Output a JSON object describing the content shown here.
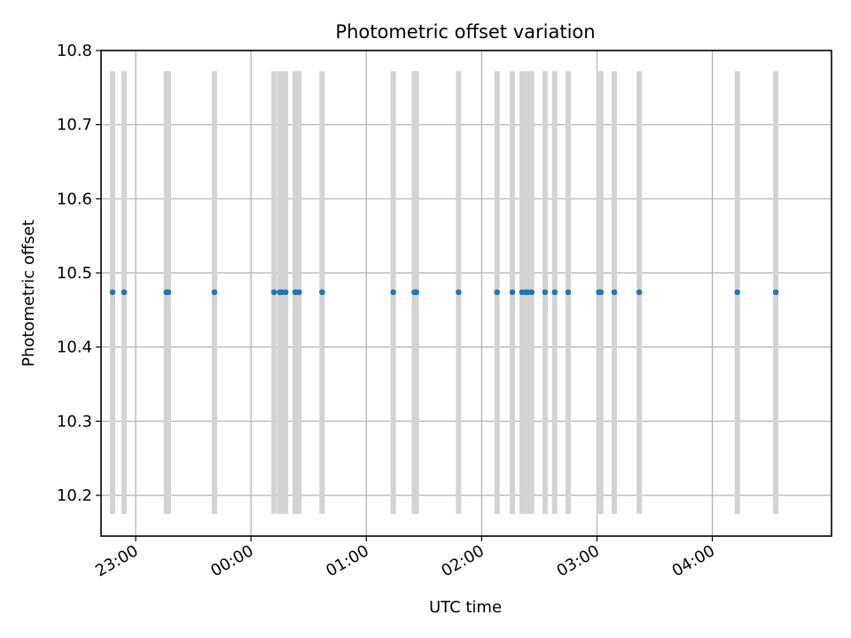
{
  "chart_data": {
    "type": "scatter",
    "title": "Photometric offset variation",
    "xlabel": "UTC time",
    "ylabel": "Photometric offset",
    "x_axis": {
      "type": "time",
      "range": [
        "22:42",
        "05:02"
      ],
      "ticks": [
        {
          "time": "23:00",
          "label": "23:00"
        },
        {
          "time": "00:00",
          "label": "00:00"
        },
        {
          "time": "01:00",
          "label": "01:00"
        },
        {
          "time": "02:00",
          "label": "02:00"
        },
        {
          "time": "03:00",
          "label": "03:00"
        },
        {
          "time": "04:00",
          "label": "04:00"
        }
      ]
    },
    "y_axis": {
      "range": [
        10.145,
        10.8
      ],
      "ticks": [
        10.2,
        10.3,
        10.4,
        10.5,
        10.6,
        10.7,
        10.8
      ],
      "tick_labels": [
        "10.2",
        "10.3",
        "10.4",
        "10.5",
        "10.6",
        "10.7",
        "10.8"
      ]
    },
    "grid": true,
    "colors": {
      "points": "#1f77b4",
      "error_bars": "#d3d3d3",
      "grid": "#b0b0b0"
    },
    "error_bar": {
      "low": 10.175,
      "high": 10.772
    },
    "points": [
      {
        "x": "22:48",
        "y": 10.474
      },
      {
        "x": "22:54",
        "y": 10.474
      },
      {
        "x": "23:16",
        "y": 10.474
      },
      {
        "x": "23:17",
        "y": 10.474
      },
      {
        "x": "23:41",
        "y": 10.474
      },
      {
        "x": "00:12",
        "y": 10.474
      },
      {
        "x": "00:15",
        "y": 10.474
      },
      {
        "x": "00:16",
        "y": 10.474
      },
      {
        "x": "00:18",
        "y": 10.474
      },
      {
        "x": "00:23",
        "y": 10.474
      },
      {
        "x": "00:25",
        "y": 10.474
      },
      {
        "x": "00:37",
        "y": 10.474
      },
      {
        "x": "01:14",
        "y": 10.474
      },
      {
        "x": "01:25",
        "y": 10.474
      },
      {
        "x": "01:26",
        "y": 10.474
      },
      {
        "x": "01:48",
        "y": 10.474
      },
      {
        "x": "02:08",
        "y": 10.474
      },
      {
        "x": "02:16",
        "y": 10.474
      },
      {
        "x": "02:21",
        "y": 10.474
      },
      {
        "x": "02:23",
        "y": 10.474
      },
      {
        "x": "02:24",
        "y": 10.474
      },
      {
        "x": "02:26",
        "y": 10.474
      },
      {
        "x": "02:33",
        "y": 10.474
      },
      {
        "x": "02:38",
        "y": 10.474
      },
      {
        "x": "02:45",
        "y": 10.474
      },
      {
        "x": "03:01",
        "y": 10.474
      },
      {
        "x": "03:02",
        "y": 10.474
      },
      {
        "x": "03:09",
        "y": 10.474
      },
      {
        "x": "03:22",
        "y": 10.474
      },
      {
        "x": "04:13",
        "y": 10.474
      },
      {
        "x": "04:33",
        "y": 10.474
      }
    ]
  }
}
